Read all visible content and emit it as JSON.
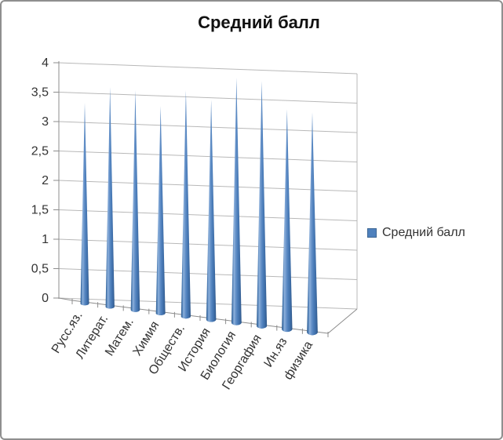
{
  "window": {
    "background": "#ffffff",
    "frame_border_color": "#8f8f8f"
  },
  "chart_data": {
    "type": "bar",
    "bar_shape": "3d-cone",
    "title": "Средний балл",
    "categories": [
      "Русс.яз.",
      "Литерат.",
      "Матем.",
      "Химия",
      "Обществ.",
      "История",
      "Биология",
      "Георгафия",
      "Ин.яз",
      "физика"
    ],
    "series": [
      {
        "name": "Средний балл",
        "values": [
          3.2,
          3.5,
          3.5,
          3.3,
          3.6,
          3.5,
          3.9,
          3.9,
          3.5,
          3.5
        ]
      }
    ],
    "xlabel": "",
    "ylabel": "",
    "ylim": [
      0,
      4
    ],
    "y_tick_step": 0.5,
    "y_tick_labels": [
      "0",
      "0,5",
      "1",
      "1,5",
      "2",
      "2,5",
      "3",
      "3,5",
      "4"
    ],
    "grid": true,
    "legend_position": "right",
    "colors": {
      "cone_main": "#4f81bd",
      "cone_highlight": "#8fb2dc",
      "cone_dark": "#2e5585",
      "gridline": "#b8b8b8",
      "axis_line": "#8c8c8c",
      "tick_text": "#333333",
      "title_text": "#111111"
    }
  },
  "legend": {
    "label": "Средний балл",
    "swatch_color": "#4f81bd"
  }
}
